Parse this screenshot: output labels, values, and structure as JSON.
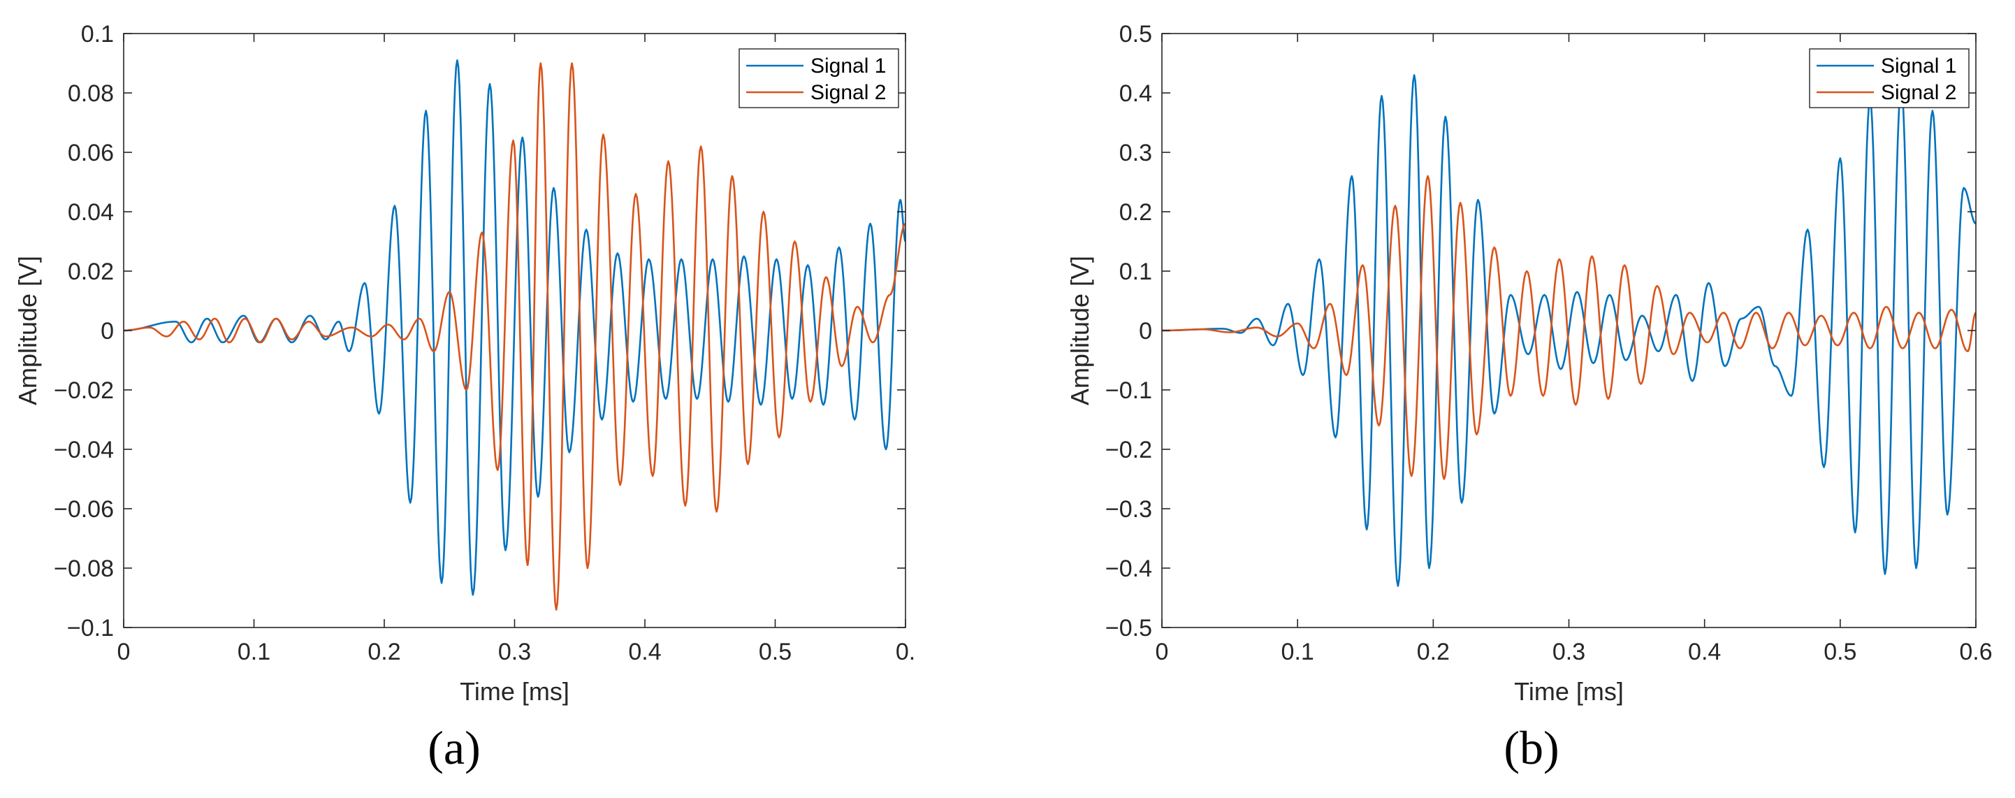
{
  "chart_data": [
    {
      "type": "line",
      "caption": "(a)",
      "xlabel": "Time [ms]",
      "ylabel": "Amplitude [V]",
      "xlim": [
        0,
        0.6
      ],
      "ylim": [
        -0.1,
        0.1
      ],
      "xticks": [
        "0",
        "0.1",
        "0.2",
        "0.3",
        "0.4",
        "0.5",
        "0."
      ],
      "yticks": [
        "0.1",
        "0.08",
        "0.06",
        "0.04",
        "0.02",
        "0",
        "−0.02",
        "−0.04",
        "−0.06",
        "−0.08",
        "−0.1"
      ],
      "legend_position": "top-right",
      "grid": false,
      "series": [
        {
          "name": "Signal 1",
          "color": "#0072BD",
          "extrema": [
            [
              0.04,
              0.003
            ],
            [
              0.052,
              -0.004
            ],
            [
              0.064,
              0.004
            ],
            [
              0.076,
              -0.004
            ],
            [
              0.092,
              0.005
            ],
            [
              0.104,
              -0.004
            ],
            [
              0.117,
              0.004
            ],
            [
              0.129,
              -0.004
            ],
            [
              0.143,
              0.005
            ],
            [
              0.155,
              -0.003
            ],
            [
              0.165,
              0.003
            ],
            [
              0.173,
              -0.007
            ],
            [
              0.185,
              0.016
            ],
            [
              0.196,
              -0.028
            ],
            [
              0.208,
              0.042
            ],
            [
              0.22,
              -0.058
            ],
            [
              0.232,
              0.074
            ],
            [
              0.244,
              -0.085
            ],
            [
              0.256,
              0.091
            ],
            [
              0.268,
              -0.089
            ],
            [
              0.281,
              0.083
            ],
            [
              0.293,
              -0.074
            ],
            [
              0.306,
              0.065
            ],
            [
              0.318,
              -0.056
            ],
            [
              0.33,
              0.048
            ],
            [
              0.342,
              -0.041
            ],
            [
              0.355,
              0.034
            ],
            [
              0.367,
              -0.03
            ],
            [
              0.379,
              0.026
            ],
            [
              0.391,
              -0.024
            ],
            [
              0.403,
              0.024
            ],
            [
              0.416,
              -0.023
            ],
            [
              0.428,
              0.024
            ],
            [
              0.44,
              -0.023
            ],
            [
              0.452,
              0.024
            ],
            [
              0.464,
              -0.024
            ],
            [
              0.476,
              0.025
            ],
            [
              0.489,
              -0.025
            ],
            [
              0.501,
              0.024
            ],
            [
              0.513,
              -0.023
            ],
            [
              0.525,
              0.022
            ],
            [
              0.537,
              -0.025
            ],
            [
              0.549,
              0.028
            ],
            [
              0.561,
              -0.03
            ],
            [
              0.573,
              0.036
            ],
            [
              0.585,
              -0.04
            ],
            [
              0.596,
              0.044
            ],
            [
              0.6,
              0.03
            ]
          ]
        },
        {
          "name": "Signal 2",
          "color": "#D95319",
          "extrema": [
            [
              0.02,
              0.001
            ],
            [
              0.033,
              -0.002
            ],
            [
              0.046,
              0.003
            ],
            [
              0.058,
              -0.003
            ],
            [
              0.07,
              0.004
            ],
            [
              0.081,
              -0.004
            ],
            [
              0.093,
              0.004
            ],
            [
              0.105,
              -0.004
            ],
            [
              0.117,
              0.004
            ],
            [
              0.129,
              -0.003
            ],
            [
              0.142,
              0.003
            ],
            [
              0.155,
              -0.002
            ],
            [
              0.175,
              0.001
            ],
            [
              0.19,
              -0.002
            ],
            [
              0.203,
              0.002
            ],
            [
              0.215,
              -0.003
            ],
            [
              0.227,
              0.004
            ],
            [
              0.238,
              -0.007
            ],
            [
              0.25,
              0.013
            ],
            [
              0.263,
              -0.02
            ],
            [
              0.275,
              0.033
            ],
            [
              0.287,
              -0.047
            ],
            [
              0.299,
              0.064
            ],
            [
              0.31,
              -0.079
            ],
            [
              0.32,
              0.09
            ],
            [
              0.332,
              -0.094
            ],
            [
              0.344,
              0.09
            ],
            [
              0.356,
              -0.08
            ],
            [
              0.368,
              0.066
            ],
            [
              0.381,
              -0.052
            ],
            [
              0.393,
              0.046
            ],
            [
              0.406,
              -0.049
            ],
            [
              0.418,
              0.057
            ],
            [
              0.431,
              -0.059
            ],
            [
              0.443,
              0.062
            ],
            [
              0.455,
              -0.061
            ],
            [
              0.467,
              0.052
            ],
            [
              0.479,
              -0.045
            ],
            [
              0.491,
              0.04
            ],
            [
              0.503,
              -0.036
            ],
            [
              0.515,
              0.03
            ],
            [
              0.527,
              -0.024
            ],
            [
              0.539,
              0.018
            ],
            [
              0.551,
              -0.012
            ],
            [
              0.563,
              0.008
            ],
            [
              0.575,
              -0.004
            ],
            [
              0.588,
              0.012
            ],
            [
              0.6,
              0.036
            ]
          ]
        }
      ]
    },
    {
      "type": "line",
      "caption": "(b)",
      "xlabel": "Time [ms]",
      "ylabel": "Amplitude [V]",
      "xlim": [
        0,
        0.6
      ],
      "ylim": [
        -0.5,
        0.5
      ],
      "xticks": [
        "0",
        "0.1",
        "0.2",
        "0.3",
        "0.4",
        "0.5",
        "0.6"
      ],
      "yticks": [
        "0.5",
        "0.4",
        "0.3",
        "0.2",
        "0.1",
        "0",
        "−0.1",
        "−0.2",
        "−0.3",
        "−0.4",
        "−0.5"
      ],
      "legend_position": "top-right",
      "grid": false,
      "series": [
        {
          "name": "Signal 1",
          "color": "#0072BD",
          "extrema": [
            [
              0.045,
              0.003
            ],
            [
              0.058,
              -0.004
            ],
            [
              0.07,
              0.02
            ],
            [
              0.082,
              -0.025
            ],
            [
              0.093,
              0.045
            ],
            [
              0.104,
              -0.075
            ],
            [
              0.116,
              0.12
            ],
            [
              0.128,
              -0.18
            ],
            [
              0.14,
              0.26
            ],
            [
              0.151,
              -0.335
            ],
            [
              0.162,
              0.395
            ],
            [
              0.174,
              -0.43
            ],
            [
              0.186,
              0.43
            ],
            [
              0.197,
              -0.4
            ],
            [
              0.209,
              0.36
            ],
            [
              0.221,
              -0.29
            ],
            [
              0.233,
              0.22
            ],
            [
              0.245,
              -0.14
            ],
            [
              0.257,
              0.06
            ],
            [
              0.27,
              -0.04
            ],
            [
              0.282,
              0.06
            ],
            [
              0.294,
              -0.065
            ],
            [
              0.306,
              0.065
            ],
            [
              0.318,
              -0.055
            ],
            [
              0.33,
              0.06
            ],
            [
              0.342,
              -0.05
            ],
            [
              0.354,
              0.025
            ],
            [
              0.366,
              -0.035
            ],
            [
              0.379,
              0.06
            ],
            [
              0.391,
              -0.085
            ],
            [
              0.403,
              0.08
            ],
            [
              0.415,
              -0.06
            ],
            [
              0.427,
              0.02
            ],
            [
              0.44,
              0.04
            ],
            [
              0.452,
              -0.06
            ],
            [
              0.464,
              -0.11
            ],
            [
              0.476,
              0.17
            ],
            [
              0.488,
              -0.23
            ],
            [
              0.5,
              0.29
            ],
            [
              0.511,
              -0.34
            ],
            [
              0.522,
              0.39
            ],
            [
              0.533,
              -0.41
            ],
            [
              0.545,
              0.41
            ],
            [
              0.556,
              -0.4
            ],
            [
              0.568,
              0.37
            ],
            [
              0.579,
              -0.31
            ],
            [
              0.591,
              0.24
            ],
            [
              0.6,
              0.18
            ]
          ]
        },
        {
          "name": "Signal 2",
          "color": "#D95319",
          "extrema": [
            [
              0.03,
              0.002
            ],
            [
              0.05,
              -0.003
            ],
            [
              0.07,
              0.005
            ],
            [
              0.085,
              -0.01
            ],
            [
              0.1,
              0.012
            ],
            [
              0.112,
              -0.03
            ],
            [
              0.124,
              0.045
            ],
            [
              0.136,
              -0.075
            ],
            [
              0.148,
              0.11
            ],
            [
              0.16,
              -0.16
            ],
            [
              0.172,
              0.21
            ],
            [
              0.184,
              -0.245
            ],
            [
              0.196,
              0.26
            ],
            [
              0.208,
              -0.25
            ],
            [
              0.22,
              0.215
            ],
            [
              0.232,
              -0.175
            ],
            [
              0.245,
              0.14
            ],
            [
              0.257,
              -0.11
            ],
            [
              0.269,
              0.1
            ],
            [
              0.281,
              -0.11
            ],
            [
              0.293,
              0.12
            ],
            [
              0.305,
              -0.125
            ],
            [
              0.317,
              0.125
            ],
            [
              0.329,
              -0.115
            ],
            [
              0.341,
              0.11
            ],
            [
              0.353,
              -0.09
            ],
            [
              0.365,
              0.075
            ],
            [
              0.377,
              -0.04
            ],
            [
              0.389,
              0.03
            ],
            [
              0.402,
              -0.02
            ],
            [
              0.414,
              0.03
            ],
            [
              0.426,
              -0.03
            ],
            [
              0.438,
              0.03
            ],
            [
              0.45,
              -0.03
            ],
            [
              0.462,
              0.03
            ],
            [
              0.474,
              -0.025
            ],
            [
              0.486,
              0.025
            ],
            [
              0.498,
              -0.025
            ],
            [
              0.51,
              0.03
            ],
            [
              0.522,
              -0.03
            ],
            [
              0.534,
              0.04
            ],
            [
              0.546,
              -0.03
            ],
            [
              0.558,
              0.03
            ],
            [
              0.57,
              -0.03
            ],
            [
              0.582,
              0.035
            ],
            [
              0.594,
              -0.035
            ],
            [
              0.6,
              0.03
            ]
          ]
        }
      ]
    }
  ]
}
